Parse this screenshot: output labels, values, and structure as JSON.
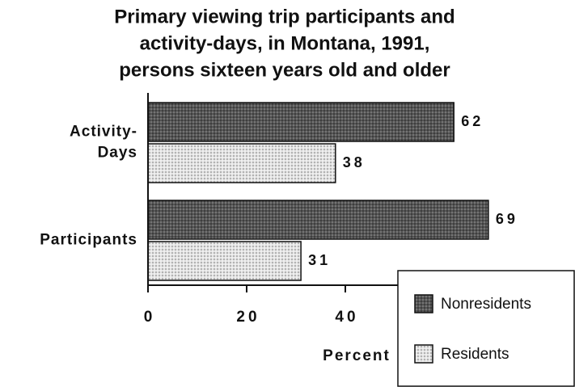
{
  "chart_data": {
    "type": "barh",
    "title": [
      "Primary viewing trip participants and",
      "activity-days, in Montana, 1991,",
      "persons sixteen years old and older"
    ],
    "xlabel": "Percent",
    "categories": [
      "Activity-Days",
      "Participants"
    ],
    "series": [
      {
        "name": "Nonresidents",
        "color": "#555555",
        "values": [
          62,
          69
        ]
      },
      {
        "name": "Residents",
        "color": "#e4e4e4",
        "values": [
          38,
          31
        ]
      }
    ],
    "xlim": [
      0,
      80
    ],
    "xticks": [
      0,
      20,
      40
    ],
    "legend": "lower right"
  }
}
